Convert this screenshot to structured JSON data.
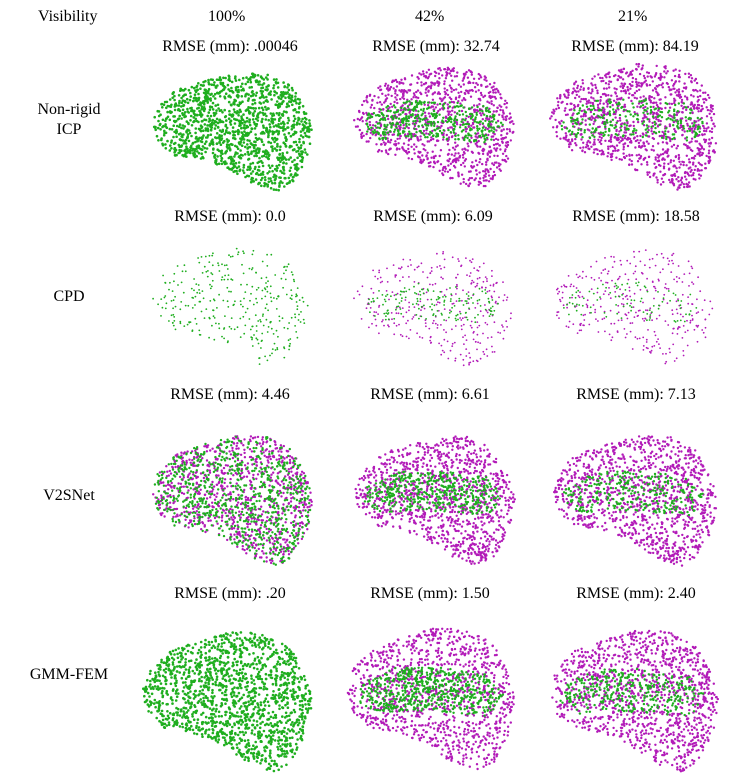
{
  "header": {
    "visibility_label": "Visibility",
    "columns": [
      "100%",
      "42%",
      "21%"
    ]
  },
  "rows": [
    {
      "label_lines": [
        "Non-rigid",
        "ICP"
      ],
      "rmse": [
        "RMSE (mm): .00046",
        "RMSE (mm): 32.74",
        "RMSE (mm): 84.19"
      ]
    },
    {
      "label_lines": [
        "CPD"
      ],
      "rmse": [
        "RMSE (mm): 0.0",
        "RMSE (mm): 6.09",
        "RMSE (mm): 18.58"
      ]
    },
    {
      "label_lines": [
        "V2SNet"
      ],
      "rmse": [
        "RMSE (mm): 4.46",
        "RMSE (mm): 6.61",
        "RMSE (mm): 7.13"
      ]
    },
    {
      "label_lines": [
        "GMM-FEM"
      ],
      "rmse": [
        "RMSE (mm): .20",
        "RMSE (mm): 1.50",
        "RMSE (mm): 2.40"
      ]
    }
  ],
  "colors": {
    "green": "#1fae1f",
    "magenta": "#b21bb8",
    "background": "#ffffff"
  }
}
